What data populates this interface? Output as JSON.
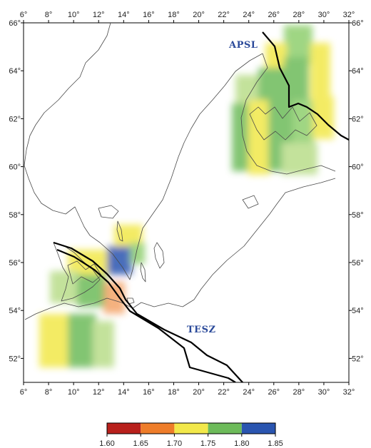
{
  "map": {
    "lon_ticks": [
      "6°",
      "8°",
      "10°",
      "12°",
      "14°",
      "16°",
      "18°",
      "20°",
      "22°",
      "24°",
      "26°",
      "28°",
      "30°",
      "32°"
    ],
    "lat_ticks": [
      "52°",
      "54°",
      "56°",
      "58°",
      "60°",
      "62°",
      "64°",
      "66°"
    ],
    "lon_range": [
      6,
      32
    ],
    "lat_range": [
      51,
      66
    ],
    "labels": {
      "apsl": "APSL",
      "tesz": "TESZ"
    }
  },
  "colorbar": {
    "ticks": [
      "1.60",
      "1.65",
      "1.70",
      "1.75",
      "1.80",
      "1.85"
    ],
    "colors": [
      "#b8201c",
      "#ee7d2a",
      "#f2e84a",
      "#6dbb5a",
      "#2a55b0"
    ]
  },
  "colors": {
    "coast": "#4a4a4a",
    "boundary": "#000000",
    "frame": "#000000"
  }
}
